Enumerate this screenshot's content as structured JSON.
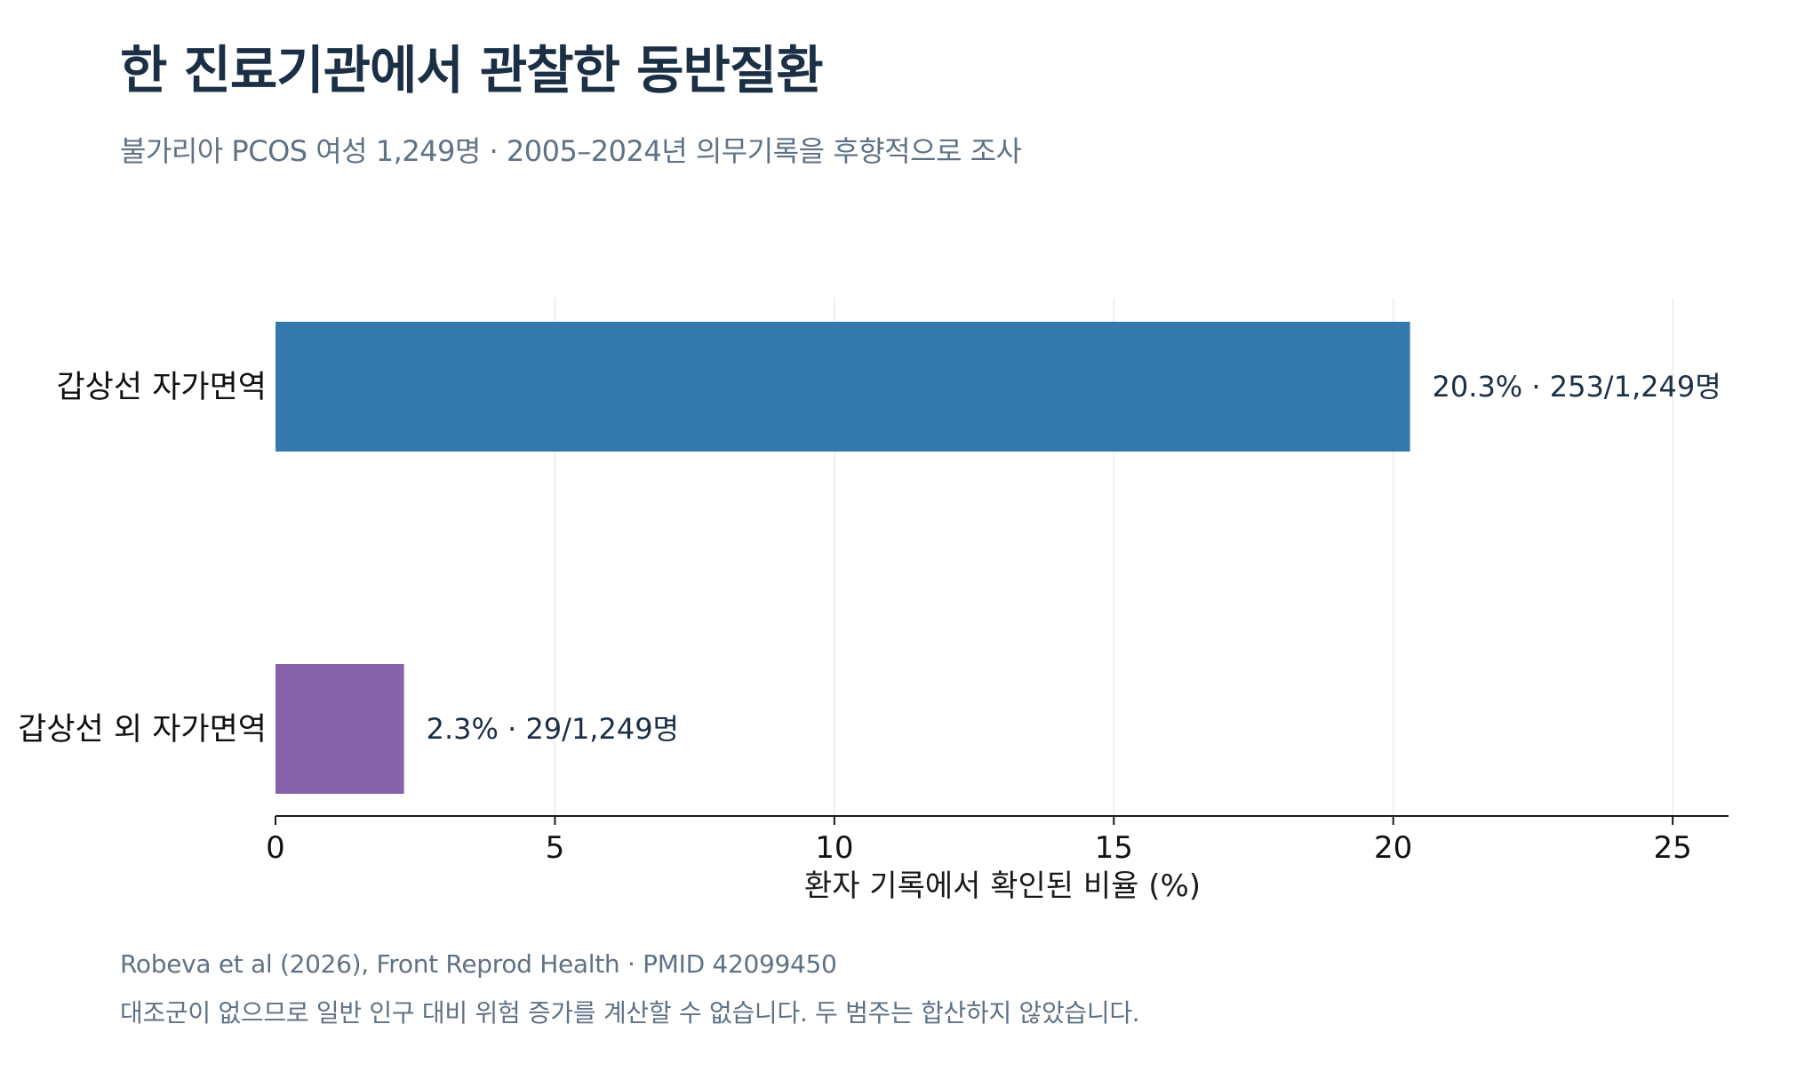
{
  "title": "한 진료기관에서 관찰한 동반질환",
  "subtitle": "불가리아 PCOS 여성 1,249명 · 2005–2024년 의무기록을 후향적으로 조사",
  "footnotes": {
    "source": "Robeva et al (2026), Front Reprod Health · PMID 42099450",
    "note": "대조군이 없으므로 일반 인구 대비 위험 증가를 계산할 수 없습니다. 두 범주는 합산하지 않았습니다."
  },
  "chart_data": {
    "type": "bar",
    "orientation": "horizontal",
    "categories": [
      "갑상선 자가면역",
      "갑상선 외 자가면역"
    ],
    "values": [
      20.3,
      2.3
    ],
    "data_labels": [
      "20.3% · 253/1,249명",
      "2.3% · 29/1,249명"
    ],
    "colors": [
      "#3479ad",
      "#8562aa"
    ],
    "xlabel": "환자 기록에서 확인된 비율 (%)",
    "ylabel": "",
    "xlim": [
      0,
      26
    ],
    "xticks": [
      0,
      5,
      10,
      15,
      20,
      25
    ],
    "grid": "vertical",
    "legend": "none"
  }
}
